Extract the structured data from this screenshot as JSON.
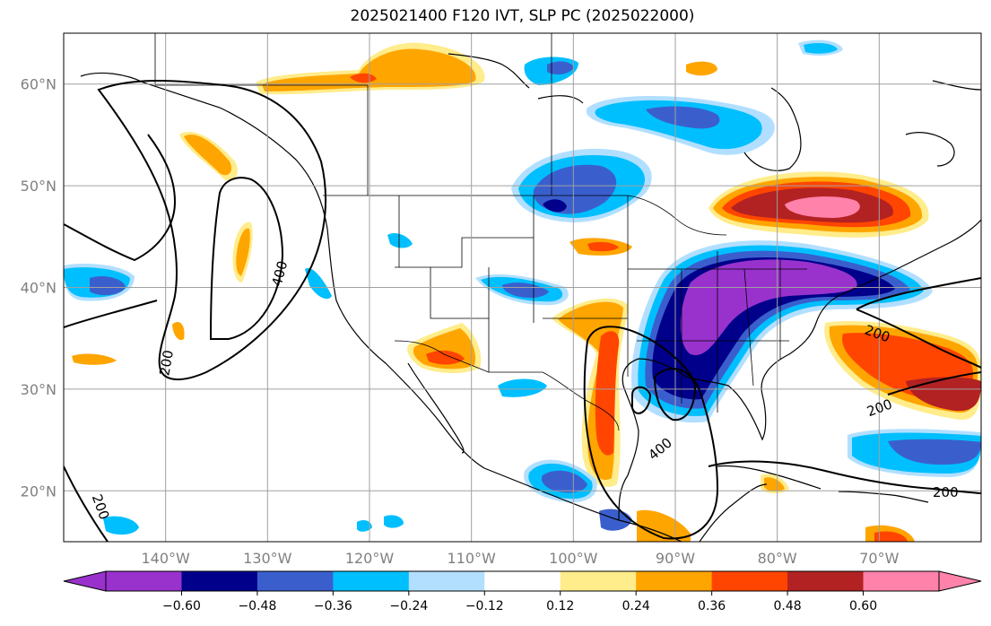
{
  "title": "2025021400 F120 IVT, SLP PC (2025022000)",
  "map": {
    "lon_range": [
      -150,
      -60
    ],
    "lat_range": [
      15,
      65
    ],
    "lat_ticks": [
      {
        "value": 20,
        "label": "20°N"
      },
      {
        "value": 30,
        "label": "30°N"
      },
      {
        "value": 40,
        "label": "40°N"
      },
      {
        "value": 50,
        "label": "50°N"
      },
      {
        "value": 60,
        "label": "60°N"
      }
    ],
    "lon_ticks": [
      {
        "value": -140,
        "label": "140°W"
      },
      {
        "value": -130,
        "label": "130°W"
      },
      {
        "value": -120,
        "label": "120°W"
      },
      {
        "value": -110,
        "label": "110°W"
      },
      {
        "value": -100,
        "label": "100°W"
      },
      {
        "value": -90,
        "label": "90°W"
      },
      {
        "value": -80,
        "label": "80°W"
      },
      {
        "value": -70,
        "label": "70°W"
      }
    ],
    "gridlines": true
  },
  "contour_labels": [
    "400",
    "200",
    "200",
    "400",
    "200",
    "200",
    "200"
  ],
  "colorbar": {
    "colors": [
      "#9932CC",
      "#00008B",
      "#3A5FCD",
      "#00BFFF",
      "#B2DFFF",
      "#FFFFFF",
      "#FFEC8B",
      "#FFA500",
      "#FF4500",
      "#B22222",
      "#FF82AB"
    ],
    "under_color": "#9932CC",
    "over_color": "#FF82AB",
    "labels": [
      "−0.60",
      "−0.48",
      "−0.36",
      "−0.24",
      "−0.12",
      "0.12",
      "0.24",
      "0.36",
      "0.48",
      "0.60"
    ]
  }
}
